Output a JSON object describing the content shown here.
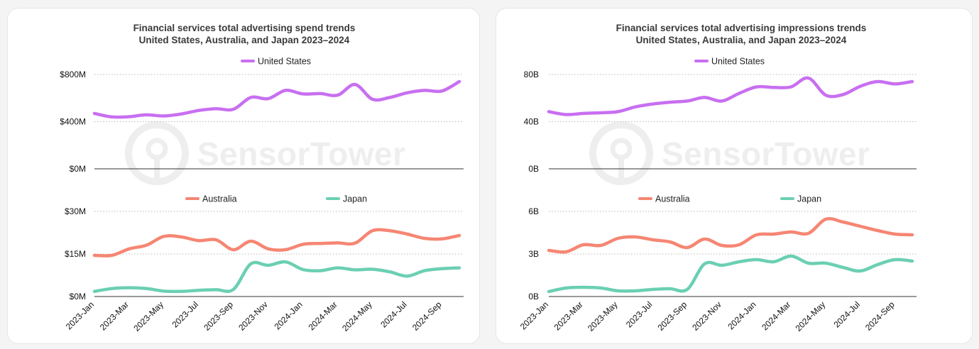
{
  "colors": {
    "us": "#c86ff0",
    "australia": "#f58673",
    "japan": "#6bcfb3",
    "grid": "#b8b8b8",
    "axis": "#333333"
  },
  "watermark": "SensorTower",
  "chart_data": [
    {
      "type": "line",
      "title": "Financial services total advertising spend trends",
      "subtitle": "United States, Australia, and Japan 2023–2024",
      "x": [
        "2023-Jan",
        "2023-Feb",
        "2023-Mar",
        "2023-Apr",
        "2023-May",
        "2023-Jun",
        "2023-Jul",
        "2023-Aug",
        "2023-Sep",
        "2023-Oct",
        "2023-Nov",
        "2023-Dec",
        "2024-Jan",
        "2024-Feb",
        "2024-Mar",
        "2024-Apr",
        "2024-May",
        "2024-Jun",
        "2024-Jul",
        "2024-Aug",
        "2024-Sep",
        "2024-Oct"
      ],
      "x_tick_labels": [
        "2023-Jan",
        "2023-Mar",
        "2023-May",
        "2023-Jul",
        "2023-Sep",
        "2023-Nov",
        "2024-Jan",
        "2024-Mar",
        "2024-May",
        "2024-Jul",
        "2024-Sep"
      ],
      "top": {
        "yticks": [
          "$800M",
          "$400M",
          "$0M"
        ],
        "ylim": [
          0,
          800
        ],
        "unit": "M",
        "series": [
          {
            "name": "United States",
            "color_key": "us",
            "values": [
              470,
              440,
              442,
              458,
              448,
              465,
              495,
              510,
              505,
              605,
              595,
              665,
              635,
              638,
              625,
              715,
              590,
              605,
              645,
              665,
              660,
              740
            ]
          }
        ]
      },
      "bottom": {
        "yticks": [
          "$30M",
          "$15M",
          "$0M"
        ],
        "ylim": [
          0,
          30
        ],
        "unit": "M",
        "series": [
          {
            "name": "Australia",
            "color_key": "australia",
            "values": [
              14.5,
              14.5,
              16.8,
              18.1,
              21.2,
              21.0,
              19.7,
              20.0,
              16.5,
              19.5,
              16.8,
              16.5,
              18.4,
              18.7,
              18.9,
              18.8,
              23.2,
              23.2,
              22.0,
              20.5,
              20.3,
              21.5
            ]
          },
          {
            "name": "Japan",
            "color_key": "japan",
            "values": [
              1.8,
              2.8,
              3.1,
              2.8,
              1.9,
              1.8,
              2.2,
              2.4,
              2.5,
              11.5,
              11.0,
              12.2,
              9.5,
              9.1,
              10.1,
              9.4,
              9.6,
              8.7,
              7.2,
              9.1,
              9.8,
              10.1
            ]
          }
        ]
      }
    },
    {
      "type": "line",
      "title": "Financial services total advertising impressions trends",
      "subtitle": "United States, Australia, and Japan 2023–2024",
      "x": [
        "2023-Jan",
        "2023-Feb",
        "2023-Mar",
        "2023-Apr",
        "2023-May",
        "2023-Jun",
        "2023-Jul",
        "2023-Aug",
        "2023-Sep",
        "2023-Oct",
        "2023-Nov",
        "2023-Dec",
        "2024-Jan",
        "2024-Feb",
        "2024-Mar",
        "2024-Apr",
        "2024-May",
        "2024-Jun",
        "2024-Jul",
        "2024-Aug",
        "2024-Sep",
        "2024-Oct"
      ],
      "x_tick_labels": [
        "2023-Jan",
        "2023-Mar",
        "2023-May",
        "2023-Jul",
        "2023-Sep",
        "2023-Nov",
        "2024-Jan",
        "2024-Mar",
        "2024-May",
        "2024-Jul",
        "2024-Sep"
      ],
      "top": {
        "yticks": [
          "80B",
          "40B",
          "0B"
        ],
        "ylim": [
          0,
          80
        ],
        "unit": "B",
        "series": [
          {
            "name": "United States",
            "color_key": "us",
            "values": [
              48.5,
              46,
              47,
              47.5,
              48.5,
              52.5,
              55,
              56.5,
              57.5,
              60.5,
              57.5,
              64,
              69.5,
              69,
              69.5,
              77,
              62.5,
              63,
              70,
              74,
              72,
              74
            ]
          }
        ]
      },
      "bottom": {
        "yticks": [
          "6B",
          "3B",
          "0B"
        ],
        "ylim": [
          0,
          6
        ],
        "unit": "B",
        "series": [
          {
            "name": "Australia",
            "color_key": "australia",
            "values": [
              3.25,
              3.15,
              3.65,
              3.6,
              4.1,
              4.2,
              4.0,
              3.85,
              3.45,
              4.05,
              3.6,
              3.65,
              4.35,
              4.4,
              4.55,
              4.45,
              5.45,
              5.25,
              4.95,
              4.65,
              4.4,
              4.35
            ]
          },
          {
            "name": "Japan",
            "color_key": "japan",
            "values": [
              0.35,
              0.6,
              0.65,
              0.6,
              0.4,
              0.4,
              0.5,
              0.55,
              0.5,
              2.3,
              2.2,
              2.45,
              2.6,
              2.45,
              2.85,
              2.35,
              2.35,
              2.05,
              1.8,
              2.25,
              2.6,
              2.5
            ]
          }
        ]
      }
    }
  ]
}
